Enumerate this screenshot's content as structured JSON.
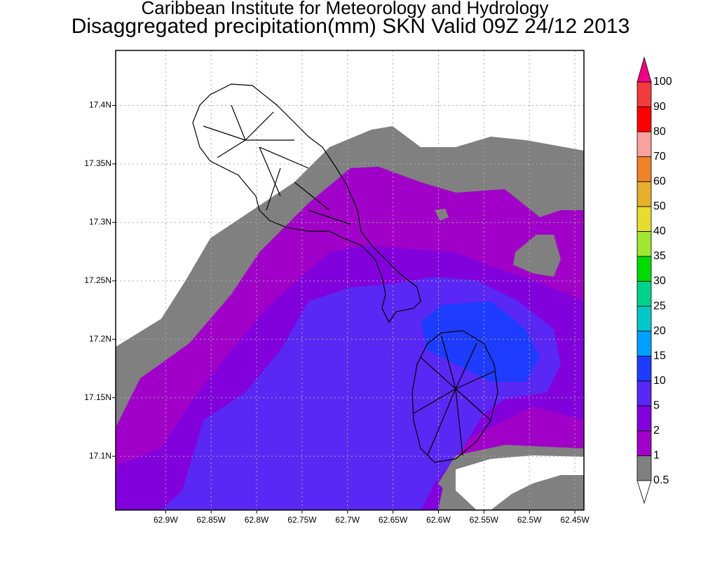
{
  "header": {
    "title": "Caribbean Institute for Meteorology and Hydrology",
    "subtitle": "Disaggregated precipitation(mm) SKN Valid 09Z 24/12 2013"
  },
  "map": {
    "xlim": [
      -62.955,
      -62.44
    ],
    "ylim": [
      17.054,
      17.447
    ],
    "xticks": [
      {
        "value": -62.9,
        "label": "62.9W"
      },
      {
        "value": -62.85,
        "label": "62.85W"
      },
      {
        "value": -62.8,
        "label": "62.8W"
      },
      {
        "value": -62.75,
        "label": "62.75W"
      },
      {
        "value": -62.7,
        "label": "62.7W"
      },
      {
        "value": -62.65,
        "label": "62.65W"
      },
      {
        "value": -62.6,
        "label": "62.6W"
      },
      {
        "value": -62.55,
        "label": "62.55W"
      },
      {
        "value": -62.5,
        "label": "62.5W"
      },
      {
        "value": -62.45,
        "label": "62.45W"
      }
    ],
    "yticks": [
      {
        "value": 17.1,
        "label": "17.1N"
      },
      {
        "value": 17.15,
        "label": "17.15N"
      },
      {
        "value": 17.2,
        "label": "17.2N"
      },
      {
        "value": 17.25,
        "label": "17.25N"
      },
      {
        "value": 17.3,
        "label": "17.3N"
      },
      {
        "value": 17.35,
        "label": "17.35N"
      },
      {
        "value": 17.4,
        "label": "17.4N"
      }
    ],
    "grid": true
  },
  "colorbar": {
    "levels": [
      0.5,
      1,
      2,
      5,
      10,
      15,
      20,
      25,
      30,
      35,
      40,
      50,
      60,
      70,
      80,
      90,
      100
    ],
    "colors": [
      "#808080",
      "#a000c8",
      "#8200dc",
      "#5a28f5",
      "#1e3cff",
      "#00a0ff",
      "#00c8c8",
      "#00d28c",
      "#00dc00",
      "#a0e632",
      "#e6dc32",
      "#e6af2d",
      "#f08228",
      "#faa0a0",
      "#ff0000",
      "#f03c3c"
    ],
    "under_color": "#ffffff",
    "over_color": "#f00082"
  }
}
